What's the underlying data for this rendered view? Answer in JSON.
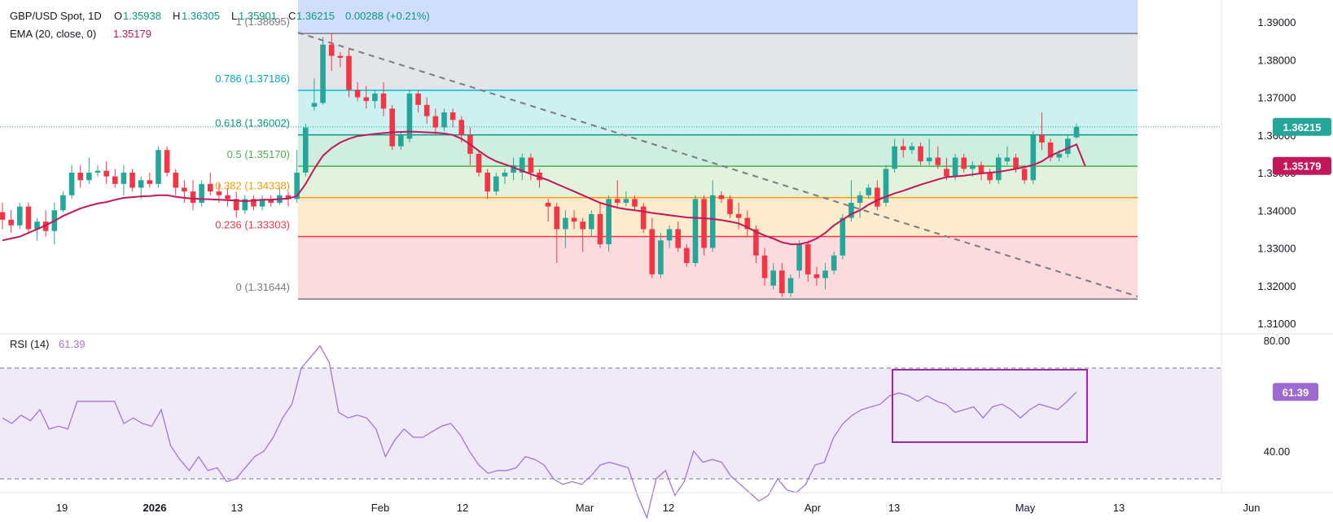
{
  "header": {
    "symbol": "GBP/USD Spot, 1D",
    "o_label": "O",
    "open": "1.35938",
    "h_label": "H",
    "high": "1.36305",
    "l_label": "L",
    "low": "1.35901",
    "c_label": "C",
    "close": "1.36215",
    "change": "0.00288 (+0.21%)",
    "ema_label": "EMA (20, close, 0)",
    "ema_value": "1.35179"
  },
  "rsi_header": {
    "label": "RSI (14)",
    "value": "61.39"
  },
  "colors": {
    "up": "#26a69a",
    "down": "#f23645",
    "ema": "#c2185b",
    "rsi": "#a673d6",
    "rsi_box": "#9c27b0",
    "price_badge": "#26a69a",
    "ema_badge": "#c2185b"
  },
  "chart_data": [
    {
      "type": "candlestick",
      "title": "GBP/USD Spot, 1D",
      "price_axis_ticks": [
        "1.39000",
        "1.38000",
        "1.37000",
        "1.36000",
        "1.35000",
        "1.34000",
        "1.33000",
        "1.32000",
        "1.31000"
      ],
      "ylim": [
        1.307,
        1.393
      ],
      "time_axis_ticks": [
        "19",
        "2026",
        "13",
        "Feb",
        "12",
        "Mar",
        "12",
        "Apr",
        "13",
        "May",
        "13",
        "Jun"
      ],
      "last_price_label": "1.36215",
      "ema_price_label": "1.35179",
      "fibonacci": [
        {
          "level": "1",
          "price": "1.38695",
          "color": "#787b86"
        },
        {
          "level": "0.786",
          "price": "1.37186",
          "color": "#00bcd4"
        },
        {
          "level": "0.618",
          "price": "1.36002",
          "color": "#089981"
        },
        {
          "level": "0.5",
          "price": "1.35170",
          "color": "#4caf50"
        },
        {
          "level": "0.382",
          "price": "1.34338",
          "color": "#ff9800"
        },
        {
          "level": "0.236",
          "price": "1.33303",
          "color": "#f23645"
        },
        {
          "level": "0",
          "price": "1.31644",
          "color": "#787b86"
        }
      ],
      "candles_ohlc": [
        [
          1.3395,
          1.342,
          1.335,
          1.3375
        ],
        [
          1.3375,
          1.34,
          1.334,
          1.336
        ],
        [
          1.336,
          1.342,
          1.335,
          1.341
        ],
        [
          1.341,
          1.342,
          1.334,
          1.335
        ],
        [
          1.335,
          1.338,
          1.332,
          1.337
        ],
        [
          1.337,
          1.34,
          1.333,
          1.3345
        ],
        [
          1.3345,
          1.342,
          1.331,
          1.34
        ],
        [
          1.34,
          1.345,
          1.3395,
          1.344
        ],
        [
          1.344,
          1.352,
          1.343,
          1.35
        ],
        [
          1.35,
          1.352,
          1.346,
          1.348
        ],
        [
          1.348,
          1.354,
          1.347,
          1.35
        ],
        [
          1.35,
          1.352,
          1.349,
          1.3505
        ],
        [
          1.3505,
          1.353,
          1.347,
          1.349
        ],
        [
          1.349,
          1.351,
          1.346,
          1.347
        ],
        [
          1.347,
          1.352,
          1.344,
          1.35
        ],
        [
          1.35,
          1.351,
          1.345,
          1.346
        ],
        [
          1.346,
          1.349,
          1.343,
          1.348
        ],
        [
          1.348,
          1.35,
          1.346,
          1.347
        ],
        [
          1.347,
          1.357,
          1.346,
          1.356
        ],
        [
          1.356,
          1.357,
          1.349,
          1.35
        ],
        [
          1.35,
          1.351,
          1.344,
          1.346
        ],
        [
          1.346,
          1.348,
          1.342,
          1.345
        ],
        [
          1.345,
          1.348,
          1.34,
          1.342
        ],
        [
          1.342,
          1.348,
          1.341,
          1.347
        ],
        [
          1.347,
          1.35,
          1.344,
          1.345
        ],
        [
          1.345,
          1.347,
          1.342,
          1.344
        ],
        [
          1.344,
          1.346,
          1.341,
          1.343
        ],
        [
          1.343,
          1.345,
          1.338,
          1.34
        ],
        [
          1.34,
          1.344,
          1.339,
          1.343
        ],
        [
          1.343,
          1.344,
          1.34,
          1.341
        ],
        [
          1.341,
          1.344,
          1.34,
          1.343
        ],
        [
          1.343,
          1.344,
          1.341,
          1.342
        ],
        [
          1.342,
          1.346,
          1.3415,
          1.344
        ],
        [
          1.344,
          1.345,
          1.341,
          1.343
        ],
        [
          1.343,
          1.356,
          1.342,
          1.35
        ],
        [
          1.35,
          1.363,
          1.349,
          1.362
        ],
        [
          1.3675,
          1.375,
          1.3665,
          1.3685
        ],
        [
          1.3685,
          1.386,
          1.368,
          1.384
        ],
        [
          1.384,
          1.387,
          1.377,
          1.381
        ],
        [
          1.381,
          1.382,
          1.378,
          1.3805
        ],
        [
          1.381,
          1.383,
          1.37,
          1.372
        ],
        [
          1.372,
          1.374,
          1.369,
          1.37
        ],
        [
          1.37,
          1.373,
          1.367,
          1.369
        ],
        [
          1.369,
          1.372,
          1.367,
          1.371
        ],
        [
          1.371,
          1.374,
          1.365,
          1.367
        ],
        [
          1.367,
          1.368,
          1.356,
          1.357
        ],
        [
          1.357,
          1.361,
          1.356,
          1.36
        ],
        [
          1.359,
          1.372,
          1.358,
          1.371
        ],
        [
          1.371,
          1.372,
          1.366,
          1.368
        ],
        [
          1.368,
          1.37,
          1.363,
          1.365
        ],
        [
          1.365,
          1.367,
          1.36,
          1.362
        ],
        [
          1.362,
          1.367,
          1.361,
          1.366
        ],
        [
          1.366,
          1.367,
          1.362,
          1.364
        ],
        [
          1.364,
          1.365,
          1.358,
          1.36
        ],
        [
          1.36,
          1.362,
          1.352,
          1.355
        ],
        [
          1.355,
          1.356,
          1.349,
          1.35
        ],
        [
          1.35,
          1.351,
          1.343,
          1.345
        ],
        [
          1.345,
          1.35,
          1.344,
          1.349
        ],
        [
          1.349,
          1.351,
          1.347,
          1.35
        ],
        [
          1.35,
          1.354,
          1.348,
          1.352
        ],
        [
          1.35,
          1.355,
          1.348,
          1.354
        ],
        [
          1.354,
          1.355,
          1.348,
          1.35
        ],
        [
          1.35,
          1.351,
          1.346,
          1.348
        ],
        [
          1.342,
          1.343,
          1.337,
          1.341
        ],
        [
          1.341,
          1.342,
          1.326,
          1.335
        ],
        [
          1.335,
          1.34,
          1.33,
          1.338
        ],
        [
          1.338,
          1.34,
          1.335,
          1.337
        ],
        [
          1.337,
          1.338,
          1.329,
          1.335
        ],
        [
          1.335,
          1.34,
          1.333,
          1.339
        ],
        [
          1.339,
          1.342,
          1.33,
          1.331
        ],
        [
          1.331,
          1.344,
          1.329,
          1.343
        ],
        [
          1.343,
          1.348,
          1.341,
          1.342
        ],
        [
          1.342,
          1.345,
          1.341,
          1.343
        ],
        [
          1.343,
          1.344,
          1.34,
          1.341
        ],
        [
          1.341,
          1.342,
          1.334,
          1.335
        ],
        [
          1.335,
          1.338,
          1.322,
          1.323
        ],
        [
          1.323,
          1.334,
          1.322,
          1.332
        ],
        [
          1.332,
          1.336,
          1.33,
          1.335
        ],
        [
          1.335,
          1.337,
          1.329,
          1.33
        ],
        [
          1.33,
          1.331,
          1.325,
          1.326
        ],
        [
          1.326,
          1.344,
          1.325,
          1.343
        ],
        [
          1.343,
          1.344,
          1.328,
          1.33
        ],
        [
          1.33,
          1.348,
          1.329,
          1.344
        ],
        [
          1.344,
          1.345,
          1.342,
          1.343
        ],
        [
          1.343,
          1.344,
          1.338,
          1.339
        ],
        [
          1.339,
          1.342,
          1.335,
          1.338
        ],
        [
          1.338,
          1.34,
          1.333,
          1.335
        ],
        [
          1.335,
          1.336,
          1.326,
          1.328
        ],
        [
          1.328,
          1.33,
          1.32,
          1.322
        ],
        [
          1.32,
          1.326,
          1.319,
          1.324
        ],
        [
          1.324,
          1.326,
          1.317,
          1.318
        ],
        [
          1.318,
          1.323,
          1.317,
          1.322
        ],
        [
          1.324,
          1.332,
          1.322,
          1.331
        ],
        [
          1.331,
          1.332,
          1.321,
          1.323
        ],
        [
          1.323,
          1.325,
          1.32,
          1.322
        ],
        [
          1.322,
          1.326,
          1.319,
          1.324
        ],
        [
          1.324,
          1.329,
          1.323,
          1.328
        ],
        [
          1.328,
          1.339,
          1.327,
          1.338
        ],
        [
          1.338,
          1.348,
          1.337,
          1.342
        ],
        [
          1.342,
          1.345,
          1.338,
          1.344
        ],
        [
          1.344,
          1.347,
          1.343,
          1.346
        ],
        [
          1.346,
          1.348,
          1.34,
          1.341
        ],
        [
          1.342,
          1.352,
          1.341,
          1.351
        ],
        [
          1.351,
          1.359,
          1.35,
          1.357
        ],
        [
          1.357,
          1.359,
          1.354,
          1.356
        ],
        [
          1.356,
          1.358,
          1.355,
          1.357
        ],
        [
          1.357,
          1.358,
          1.352,
          1.353
        ],
        [
          1.353,
          1.359,
          1.352,
          1.354
        ],
        [
          1.354,
          1.357,
          1.351,
          1.352
        ],
        [
          1.351,
          1.354,
          1.348,
          1.349
        ],
        [
          1.349,
          1.355,
          1.348,
          1.354
        ],
        [
          1.354,
          1.355,
          1.35,
          1.351
        ],
        [
          1.351,
          1.353,
          1.349,
          1.352
        ],
        [
          1.352,
          1.353,
          1.348,
          1.35
        ],
        [
          1.35,
          1.351,
          1.347,
          1.348
        ],
        [
          1.348,
          1.355,
          1.347,
          1.354
        ],
        [
          1.353,
          1.357,
          1.352,
          1.354
        ],
        [
          1.354,
          1.355,
          1.35,
          1.351
        ],
        [
          1.351,
          1.352,
          1.347,
          1.348
        ],
        [
          1.348,
          1.361,
          1.347,
          1.36
        ],
        [
          1.36,
          1.366,
          1.356,
          1.358
        ],
        [
          1.358,
          1.359,
          1.353,
          1.354
        ],
        [
          1.354,
          1.356,
          1.353,
          1.355
        ],
        [
          1.355,
          1.36,
          1.354,
          1.359
        ],
        [
          1.35938,
          1.36305,
          1.35901,
          1.36215
        ]
      ],
      "ema20": [
        1.332,
        1.3325,
        1.333,
        1.334,
        1.335,
        1.336,
        1.3372,
        1.3385,
        1.3395,
        1.3405,
        1.3412,
        1.3418,
        1.3422,
        1.3428,
        1.3433,
        1.3435,
        1.3437,
        1.3438,
        1.344,
        1.344,
        1.3436,
        1.3433,
        1.3431,
        1.343,
        1.3429,
        1.3428,
        1.3427,
        1.3426,
        1.3424,
        1.3426,
        1.3428,
        1.3428,
        1.343,
        1.3431,
        1.3438,
        1.347,
        1.351,
        1.3545,
        1.3565,
        1.358,
        1.359,
        1.3597,
        1.36,
        1.3603,
        1.3605,
        1.3607,
        1.3608,
        1.3609,
        1.3608,
        1.3607,
        1.3606,
        1.3604,
        1.36,
        1.359,
        1.3575,
        1.3558,
        1.3542,
        1.353,
        1.3522,
        1.3514,
        1.3505,
        1.3496,
        1.3488,
        1.348,
        1.347,
        1.346,
        1.345,
        1.344,
        1.343,
        1.342,
        1.3413,
        1.3407,
        1.3403,
        1.34,
        1.3397,
        1.3393,
        1.339,
        1.3387,
        1.3384,
        1.3381,
        1.338,
        1.3379,
        1.3377,
        1.3374,
        1.337,
        1.3365,
        1.3355,
        1.3343,
        1.3333,
        1.3325,
        1.3315,
        1.331,
        1.331,
        1.3315,
        1.3325,
        1.334,
        1.336,
        1.3375,
        1.339,
        1.34,
        1.3415,
        1.3427,
        1.3436,
        1.3445,
        1.3452,
        1.346,
        1.3468,
        1.3475,
        1.3482,
        1.3488,
        1.349,
        1.3492,
        1.3495,
        1.3498,
        1.35,
        1.3502,
        1.3506,
        1.351,
        1.3515,
        1.352,
        1.353,
        1.3545,
        1.3555,
        1.3565,
        1.3575,
        1.35179
      ]
    },
    {
      "type": "line",
      "title": "RSI (14)",
      "last_value_label": "61.39",
      "ylabel_ticks": [
        "80.00",
        "40.00"
      ],
      "guide_levels": [
        70,
        30
      ],
      "rsi_values": [
        52,
        50,
        53,
        51,
        55,
        48,
        49,
        48,
        58,
        58,
        58,
        58,
        58,
        50,
        52,
        50,
        49,
        55,
        42,
        37,
        33,
        38,
        33,
        34,
        29,
        30,
        34,
        38,
        40,
        45,
        52,
        57,
        70,
        74,
        78,
        72,
        54,
        52,
        53,
        52,
        48,
        38,
        44,
        48,
        45,
        45,
        47,
        49,
        50,
        46,
        40,
        35,
        32,
        33,
        33,
        34,
        38,
        37,
        35,
        30,
        28,
        29,
        28,
        31,
        35,
        36,
        35,
        34,
        24,
        16,
        30,
        33,
        24,
        29,
        40,
        36,
        37,
        36,
        31,
        28,
        25,
        22,
        24,
        30,
        26,
        25,
        28,
        35,
        36,
        45,
        50,
        53,
        55,
        56,
        57,
        60,
        61,
        60,
        58,
        60,
        58,
        57,
        54,
        55,
        56,
        52,
        56,
        57,
        55,
        52,
        55,
        57,
        56,
        55,
        58,
        61.39
      ],
      "highlight_box": "rectangle around recent RSI readings"
    }
  ]
}
